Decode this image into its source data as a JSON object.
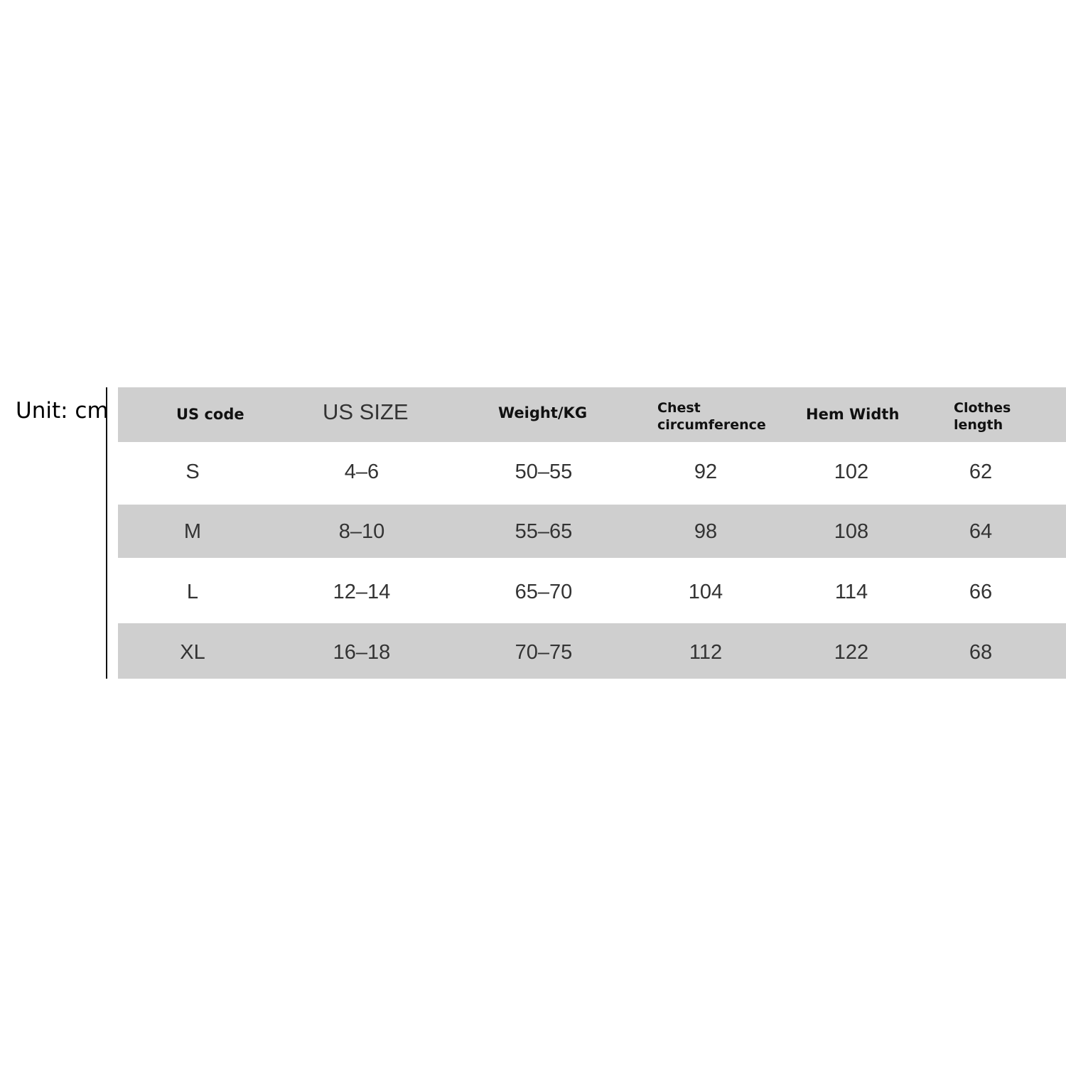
{
  "unit_label": "Unit: cm",
  "table": {
    "headers": [
      "US code",
      "US SIZE",
      "Weight/KG",
      "Chest circumference",
      "Hem Width",
      "Clothes length"
    ],
    "header_lines": {
      "chest": [
        "Chest",
        "circumference"
      ],
      "clothes": [
        "Clothes",
        "length"
      ]
    },
    "rows": [
      [
        "S",
        "4–6",
        "50–55",
        "92",
        "102",
        "62"
      ],
      [
        "M",
        "8–10",
        "55–65",
        "98",
        "108",
        "64"
      ],
      [
        "L",
        "12–14",
        "65–70",
        "104",
        "114",
        "66"
      ],
      [
        "XL",
        "16–18",
        "70–75",
        "112",
        "122",
        "68"
      ]
    ]
  },
  "colors": {
    "band_gray": "#cfcfcf",
    "background": "#ffffff"
  }
}
